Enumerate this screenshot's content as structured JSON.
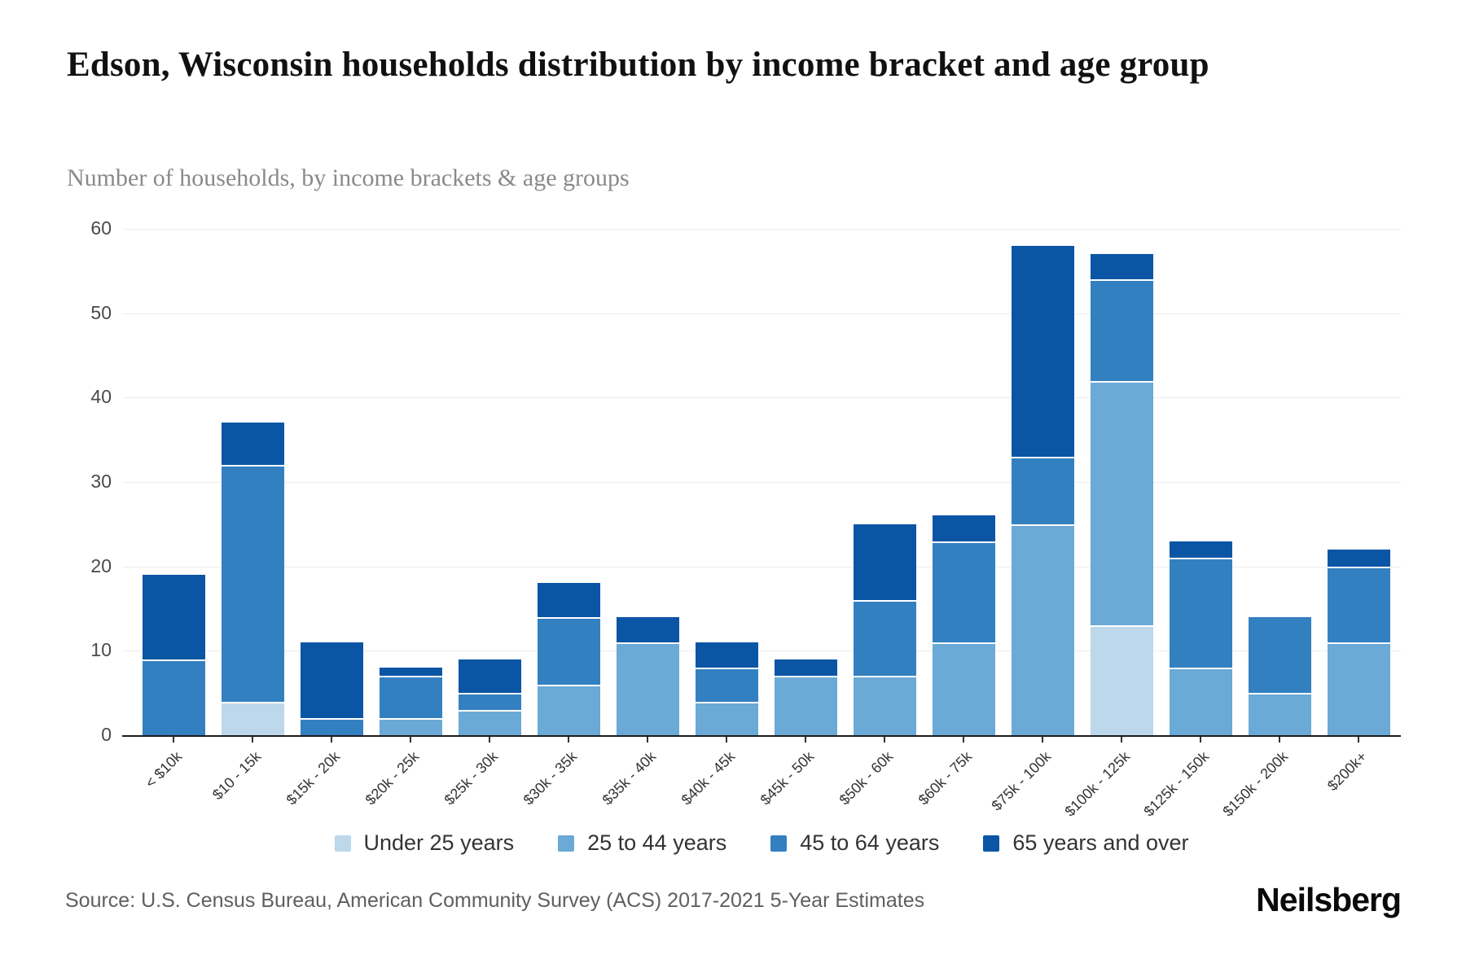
{
  "header": {
    "title": "Edson, Wisconsin households distribution by income bracket and age group",
    "subtitle": "Number of households, by income brackets & age groups"
  },
  "chart_data": {
    "type": "bar",
    "stacked": true,
    "title": "Edson, Wisconsin households distribution by income bracket and age group",
    "subtitle": "Number of households, by income brackets & age groups",
    "xlabel": "",
    "ylabel": "",
    "ylim": [
      0,
      60
    ],
    "yticks": [
      0,
      10,
      20,
      30,
      40,
      50,
      60
    ],
    "grid": true,
    "legend_position": "bottom",
    "categories": [
      "< $10k",
      "$10 - 15k",
      "$15k - 20k",
      "$20k - 25k",
      "$25k - 30k",
      "$30k - 35k",
      "$35k - 40k",
      "$40k - 45k",
      "$45k - 50k",
      "$50k - 60k",
      "$60k - 75k",
      "$75k - 100k",
      "$100k - 125k",
      "$125k - 150k",
      "$150k - 200k",
      "$200k+"
    ],
    "series": [
      {
        "name": "Under 25 years",
        "color": "#bdd7eb",
        "values": [
          0,
          4,
          0,
          0,
          0,
          0,
          0,
          0,
          0,
          0,
          0,
          0,
          13,
          0,
          0,
          0
        ]
      },
      {
        "name": "25 to 44 years",
        "color": "#6ba9d6",
        "values": [
          0,
          0,
          0,
          2,
          3,
          6,
          11,
          4,
          7,
          7,
          11,
          25,
          29,
          8,
          5,
          11
        ]
      },
      {
        "name": "45 to 64 years",
        "color": "#3380c1",
        "values": [
          9,
          28,
          2,
          5,
          2,
          8,
          0,
          4,
          0,
          9,
          12,
          8,
          12,
          13,
          9,
          9
        ]
      },
      {
        "name": "65 years and over",
        "color": "#0b55a5",
        "values": [
          10,
          5,
          9,
          1,
          4,
          4,
          3,
          3,
          2,
          9,
          3,
          25,
          3,
          2,
          0,
          2
        ]
      }
    ],
    "totals": [
      19,
      37,
      11,
      8,
      9,
      18,
      14,
      11,
      9,
      25,
      26,
      58,
      57,
      23,
      14,
      22
    ]
  },
  "footer": {
    "source": "Source: U.S. Census Bureau, American Community Survey (ACS) 2017-2021 5-Year Estimates",
    "brand": "Neilsberg"
  }
}
